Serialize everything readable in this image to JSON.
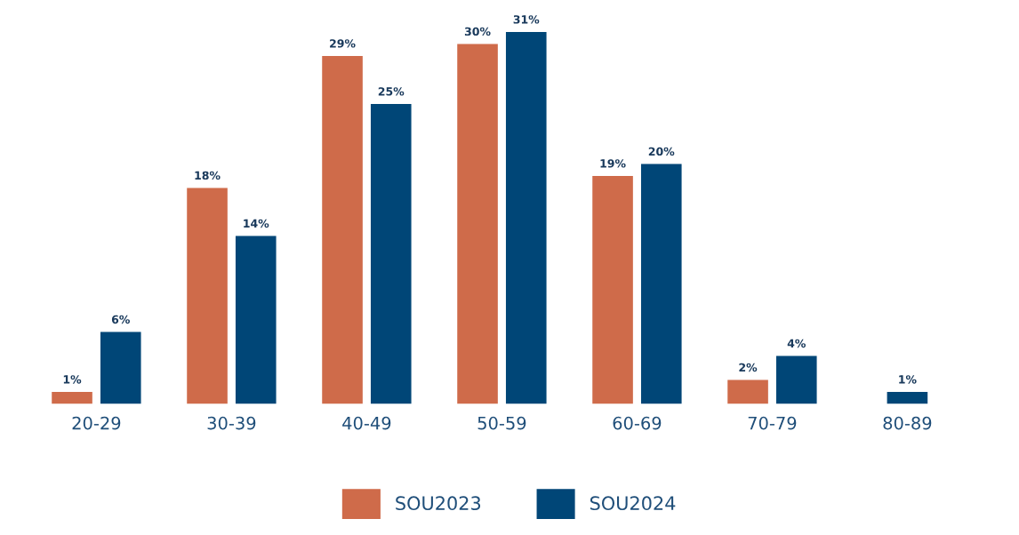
{
  "chart_data": {
    "type": "bar",
    "categories": [
      "20-29",
      "30-39",
      "40-49",
      "50-59",
      "60-69",
      "70-79",
      "80-89"
    ],
    "series": [
      {
        "name": "SOU2023",
        "color": "#cf6b4a",
        "values": [
          1,
          18,
          29,
          30,
          19,
          2,
          null
        ],
        "value_labels": [
          "1%",
          "18%",
          "29%",
          "30%",
          "19%",
          "2%",
          null
        ]
      },
      {
        "name": "SOU2024",
        "color": "#004677",
        "values": [
          6,
          14,
          25,
          31,
          20,
          4,
          1
        ],
        "value_labels": [
          "6%",
          "14%",
          "25%",
          "31%",
          "20%",
          "4%",
          "1%"
        ]
      }
    ],
    "legend": "bottom",
    "grid": false
  }
}
